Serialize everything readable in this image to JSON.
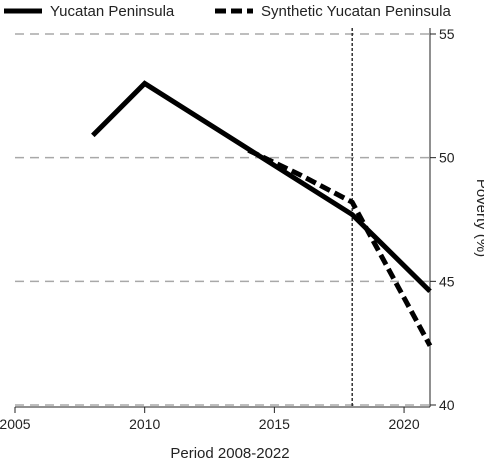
{
  "chart_data": {
    "type": "line",
    "title": "",
    "xlabel": "Period 2008-2022",
    "ylabel": "Poverty (%)",
    "xlim": [
      2005,
      2021
    ],
    "ylim": [
      40,
      55
    ],
    "xticks": [
      2005,
      2010,
      2015,
      2020
    ],
    "yticks": [
      40,
      45,
      50,
      55
    ],
    "grid": "horizontal dashed",
    "y_axis_side": "right",
    "legend_position": "top",
    "reference_line": {
      "x": 2018,
      "style": "dotted vertical"
    },
    "series": [
      {
        "name": "Yucatan Peninsula",
        "style": "solid",
        "color": "#000000",
        "x": [
          2008,
          2010,
          2018,
          2021
        ],
        "y": [
          50.9,
          53.0,
          47.7,
          44.6
        ]
      },
      {
        "name": "Synthetic Yucatan Peninsula",
        "style": "dashed",
        "color": "#000000",
        "x": [
          2014,
          2016,
          2018,
          2021
        ],
        "y": [
          50.3,
          49.3,
          48.2,
          42.4
        ]
      }
    ]
  }
}
